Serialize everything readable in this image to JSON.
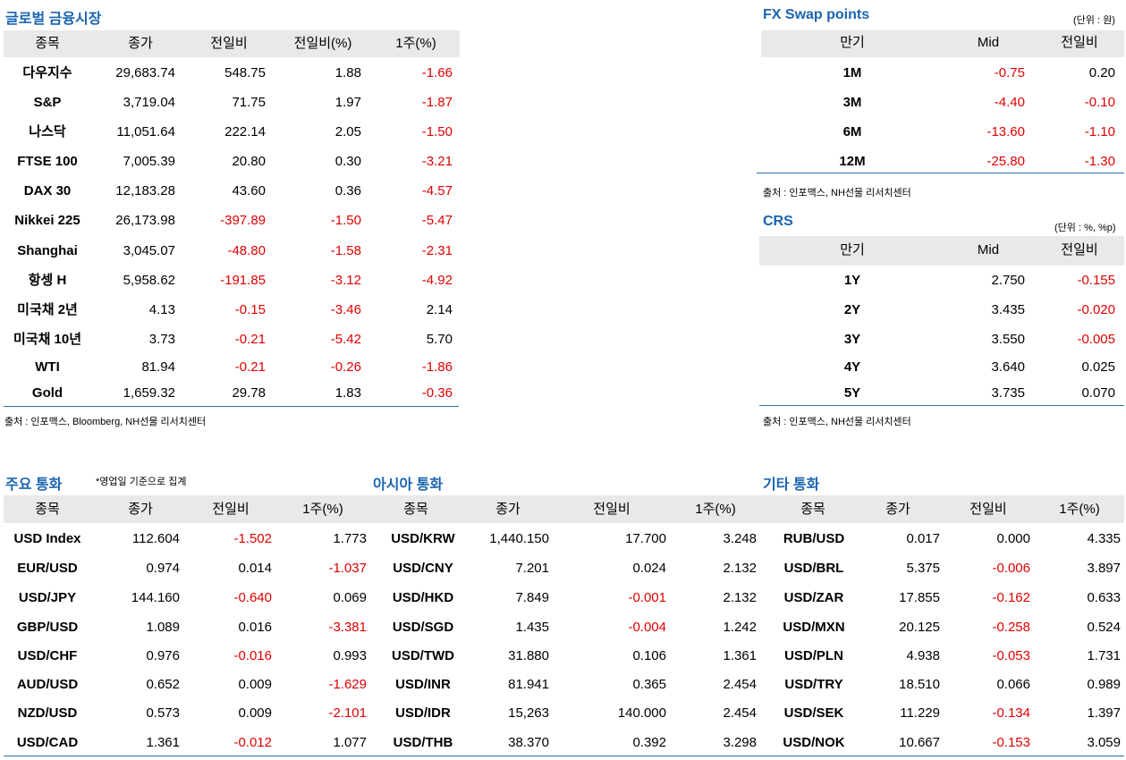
{
  "global": {
    "title": "글로벌 금융시장",
    "headers": [
      "종목",
      "종가",
      "전일비",
      "전일비(%)",
      "1주(%)"
    ],
    "rows": [
      [
        "다우지수",
        "29,683.74",
        "548.75",
        "1.88",
        "-1.66"
      ],
      [
        "S&P",
        "3,719.04",
        "71.75",
        "1.97",
        "-1.87"
      ],
      [
        "나스닥",
        "11,051.64",
        "222.14",
        "2.05",
        "-1.50"
      ],
      [
        "FTSE 100",
        "7,005.39",
        "20.80",
        "0.30",
        "-3.21"
      ],
      [
        "DAX 30",
        "12,183.28",
        "43.60",
        "0.36",
        "-4.57"
      ],
      [
        "Nikkei 225",
        "26,173.98",
        "-397.89",
        "-1.50",
        "-5.47"
      ],
      [
        "Shanghai",
        "3,045.07",
        "-48.80",
        "-1.58",
        "-2.31"
      ],
      [
        "항셍 H",
        "5,958.62",
        "-191.85",
        "-3.12",
        "-4.92"
      ],
      [
        "미국채 2년",
        "4.13",
        "-0.15",
        "-3.46",
        "2.14"
      ],
      [
        "미국채 10년",
        "3.73",
        "-0.21",
        "-5.42",
        "5.70"
      ],
      [
        "WTI",
        "81.94",
        "-0.21",
        "-0.26",
        "-1.86"
      ],
      [
        "Gold",
        "1,659.32",
        "29.78",
        "1.83",
        "-0.36"
      ]
    ],
    "source": "출처 : 인포맥스, Bloomberg, NH선물 리서치센터"
  },
  "fxswap": {
    "title": "FX Swap points",
    "unit": "(단위 : 원)",
    "headers": [
      "만기",
      "Mid",
      "전일비"
    ],
    "rows": [
      [
        "1M",
        "-0.75",
        "0.20"
      ],
      [
        "3M",
        "-4.40",
        "-0.10"
      ],
      [
        "6M",
        "-13.60",
        "-1.10"
      ],
      [
        "12M",
        "-25.80",
        "-1.30"
      ]
    ],
    "source": "출처 : 인포맥스, NH선물 리서치센터"
  },
  "crs": {
    "title": "CRS",
    "unit": "(단위 : %, %p)",
    "headers": [
      "만기",
      "Mid",
      "전일비"
    ],
    "rows": [
      [
        "1Y",
        "2.750",
        "-0.155"
      ],
      [
        "2Y",
        "3.435",
        "-0.020"
      ],
      [
        "3Y",
        "3.550",
        "-0.005"
      ],
      [
        "4Y",
        "3.640",
        "0.025"
      ],
      [
        "5Y",
        "3.735",
        "0.070"
      ]
    ],
    "source": "출처 : 인포맥스, NH선물 리서치센터"
  },
  "major": {
    "title": "주요 통화",
    "note": "*영업일 기준으로 집계",
    "headers": [
      "종목",
      "종가",
      "전일비",
      "1주(%)"
    ],
    "rows": [
      [
        "USD Index",
        "112.604",
        "-1.502",
        "1.773"
      ],
      [
        "EUR/USD",
        "0.974",
        "0.014",
        "-1.037"
      ],
      [
        "USD/JPY",
        "144.160",
        "-0.640",
        "0.069"
      ],
      [
        "GBP/USD",
        "1.089",
        "0.016",
        "-3.381"
      ],
      [
        "USD/CHF",
        "0.976",
        "-0.016",
        "0.993"
      ],
      [
        "AUD/USD",
        "0.652",
        "0.009",
        "-1.629"
      ],
      [
        "NZD/USD",
        "0.573",
        "0.009",
        "-2.101"
      ],
      [
        "USD/CAD",
        "1.361",
        "-0.012",
        "1.077"
      ]
    ]
  },
  "asia": {
    "title": "아시아 통화",
    "headers": [
      "종목",
      "종가",
      "전일비",
      "1주(%)"
    ],
    "rows": [
      [
        "USD/KRW",
        "1,440.150",
        "17.700",
        "3.248"
      ],
      [
        "USD/CNY",
        "7.201",
        "0.024",
        "2.132"
      ],
      [
        "USD/HKD",
        "7.849",
        "-0.001",
        "2.132"
      ],
      [
        "USD/SGD",
        "1.435",
        "-0.004",
        "1.242"
      ],
      [
        "USD/TWD",
        "31.880",
        "0.106",
        "1.361"
      ],
      [
        "USD/INR",
        "81.941",
        "0.365",
        "2.454"
      ],
      [
        "USD/IDR",
        "15,263",
        "140.000",
        "2.454"
      ],
      [
        "USD/THB",
        "38.370",
        "0.392",
        "3.298"
      ]
    ]
  },
  "other": {
    "title": "기타 통화",
    "headers": [
      "종목",
      "종가",
      "전일비",
      "1주(%)"
    ],
    "rows": [
      [
        "RUB/USD",
        "0.017",
        "0.000",
        "4.335"
      ],
      [
        "USD/BRL",
        "5.375",
        "-0.006",
        "3.897"
      ],
      [
        "USD/ZAR",
        "17.855",
        "-0.162",
        "0.633"
      ],
      [
        "USD/MXN",
        "20.125",
        "-0.258",
        "0.524"
      ],
      [
        "USD/PLN",
        "4.938",
        "-0.053",
        "1.731"
      ],
      [
        "USD/TRY",
        "18.510",
        "0.066",
        "0.989"
      ],
      [
        "USD/SEK",
        "11.229",
        "-0.134",
        "1.397"
      ],
      [
        "USD/NOK",
        "10.667",
        "-0.153",
        "3.059"
      ]
    ]
  },
  "colors": {
    "title": "#1a64b0",
    "negative": "#e00000",
    "header_bg": "#e9e9e9",
    "rule": "#2a6fb5"
  }
}
